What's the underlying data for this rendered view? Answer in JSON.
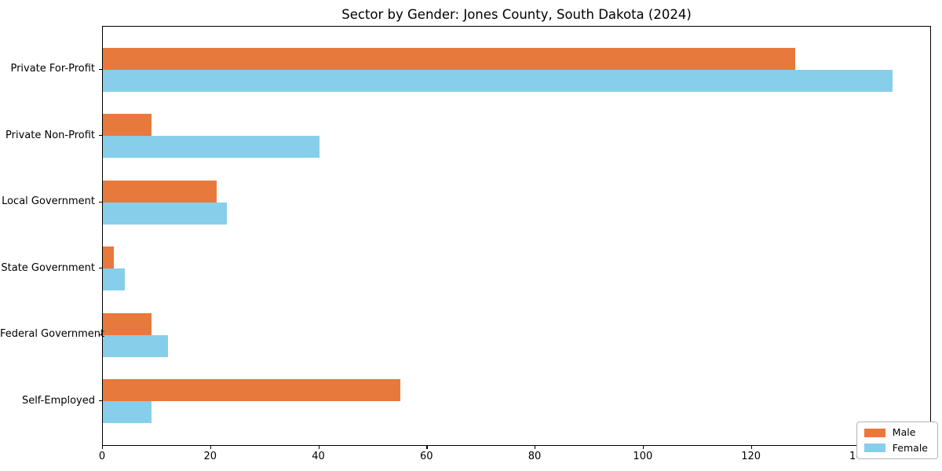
{
  "title": "Sector by Gender: Jones County, South Dakota (2024)",
  "chart_data": {
    "type": "bar",
    "orientation": "horizontal",
    "title": "Sector by Gender: Jones County, South Dakota (2024)",
    "xlabel": "",
    "ylabel": "",
    "categories": [
      "Private For-Profit",
      "Private Non-Profit",
      "Local Government",
      "State Government",
      "Federal Government",
      "Self-Employed"
    ],
    "series": [
      {
        "name": "Male",
        "color": "#e8793d",
        "values": [
          128,
          9,
          21,
          2,
          9,
          55
        ]
      },
      {
        "name": "Female",
        "color": "#87ceeb",
        "values": [
          146,
          40,
          23,
          4,
          12,
          9
        ]
      }
    ],
    "xlim": [
      0,
      153.3
    ],
    "x_ticks": [
      0,
      20,
      40,
      60,
      80,
      100,
      120,
      140
    ],
    "grid": false,
    "legend_position": "lower right",
    "background_color": "#ffffff",
    "spine_color": "#000000"
  }
}
